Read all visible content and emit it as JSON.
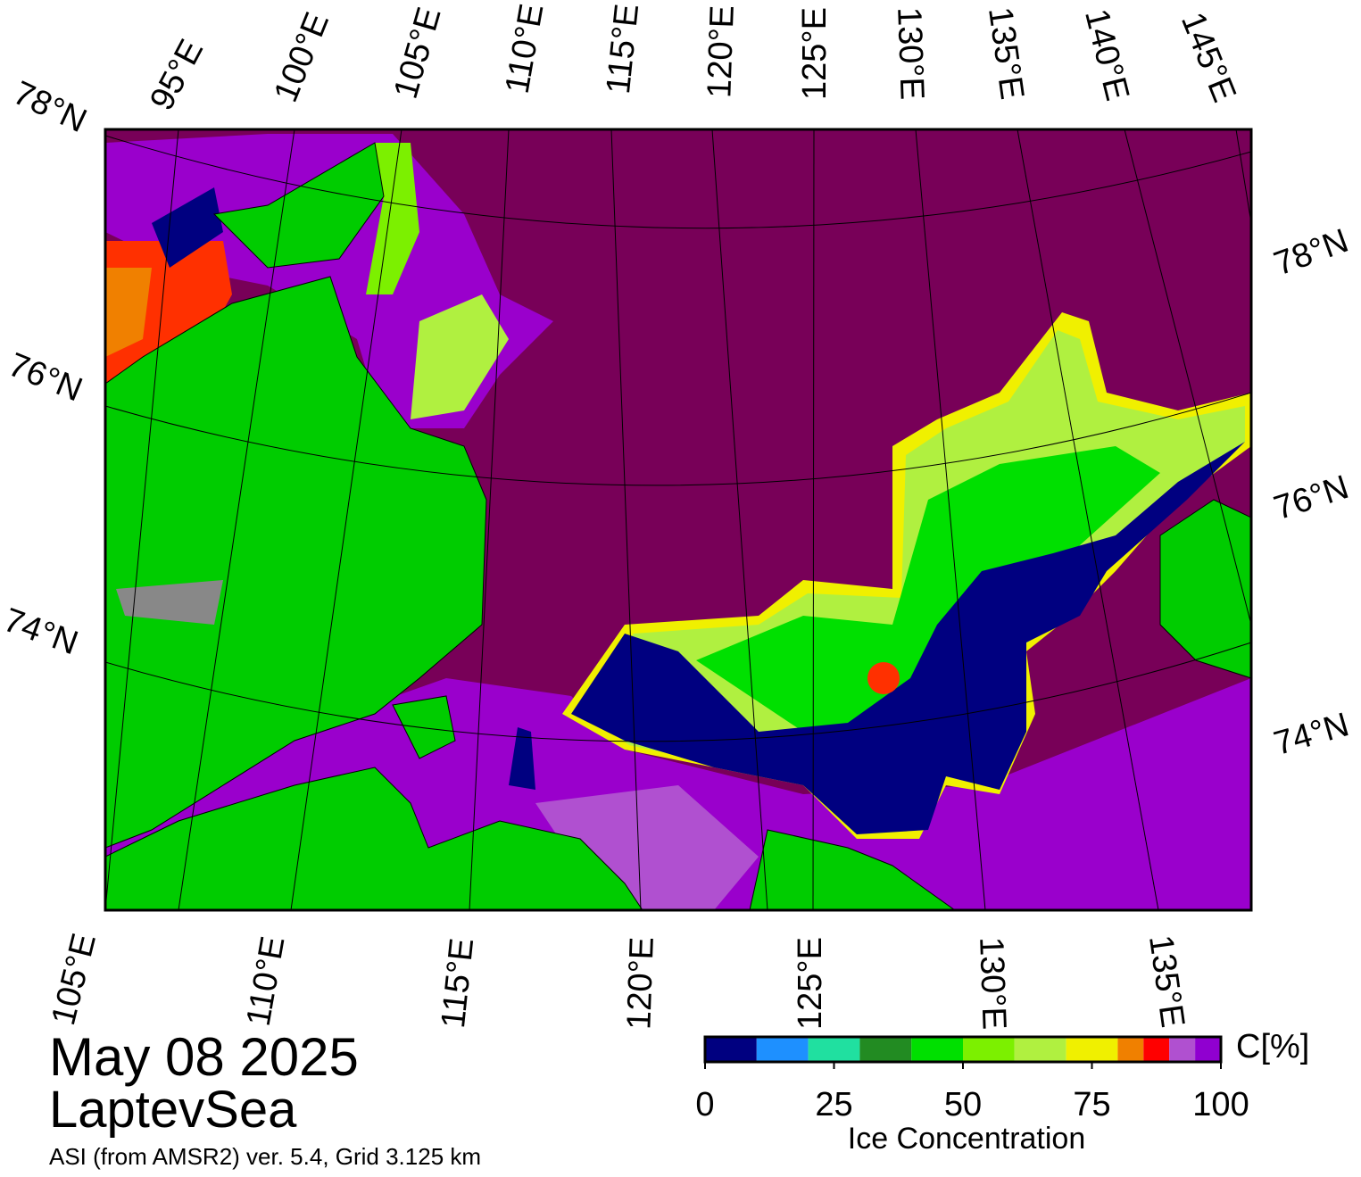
{
  "map": {
    "top_labels": [
      "95°E",
      "100°E",
      "105°E",
      "110°E",
      "115°E",
      "120°E",
      "125°E",
      "130°E",
      "135°E",
      "140°E",
      "145°E"
    ],
    "left_labels": [
      "78°N",
      "76°N",
      "74°N"
    ],
    "right_labels": [
      "78°N",
      "76°N",
      "74°N"
    ],
    "bottom_labels": [
      "105°E",
      "110°E",
      "115°E",
      "120°E",
      "125°E",
      "130°E",
      "135°E"
    ]
  },
  "caption": {
    "date": "May 08 2025",
    "region": "LaptevSea",
    "source": "ASI (from AMSR2) ver. 5.4,  Grid 3.125 km"
  },
  "colorbar": {
    "title": "Ice Concentration",
    "unit": "C[%]",
    "ticks": [
      0,
      25,
      50,
      75,
      100
    ],
    "bounds": [
      0,
      10,
      20,
      30,
      40,
      50,
      60,
      70,
      80,
      85,
      90,
      95,
      100
    ],
    "colors": [
      "#000080",
      "#1e90ff",
      "#20e0a0",
      "#228b22",
      "#00e000",
      "#7cf000",
      "#b0f040",
      "#f0f000",
      "#f08000",
      "#ff0000",
      "#b050d0",
      "#9000d0"
    ]
  }
}
